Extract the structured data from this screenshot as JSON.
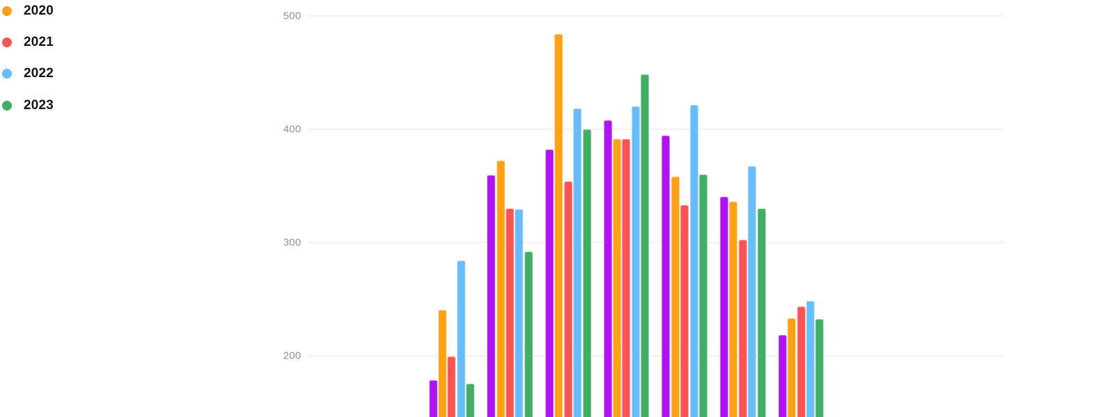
{
  "legend": {
    "items": [
      {
        "label": "2020",
        "color": "#FFA113"
      },
      {
        "label": "2021",
        "color": "#FF5252"
      },
      {
        "label": "2022",
        "color": "#66BDFA"
      },
      {
        "label": "2023",
        "color": "#41AF63"
      }
    ]
  },
  "colors": {
    "background": "#FFFFFF",
    "gridline": "#F1F1F3",
    "axis_label": "#8A94B0",
    "legend_text": "#111418"
  },
  "chart_data": {
    "type": "bar",
    "title": "",
    "legend_position": "top-left",
    "grid": true,
    "y_ticks": [
      "500",
      "400",
      "300",
      "200"
    ],
    "y_axis_visible_range": [
      146,
      514
    ],
    "x_axis_labels_visible": false,
    "num_groups": 7,
    "series": [
      {
        "name": "",
        "color": "#AE12F5",
        "values": [
          178,
          359,
          382,
          408,
          394,
          340,
          218
        ]
      },
      {
        "name": "2020",
        "color": "#FFA113",
        "values": [
          240,
          372,
          484,
          391,
          358,
          336,
          233
        ]
      },
      {
        "name": "2021",
        "color": "#FF5252",
        "values": [
          199,
          330,
          354,
          391,
          333,
          302,
          243
        ]
      },
      {
        "name": "2022",
        "color": "#66BDFA",
        "values": [
          284,
          329,
          418,
          420,
          421,
          367,
          248
        ]
      },
      {
        "name": "2023",
        "color": "#41AF63",
        "values": [
          175,
          292,
          400,
          448,
          360,
          330,
          232
        ]
      }
    ]
  }
}
